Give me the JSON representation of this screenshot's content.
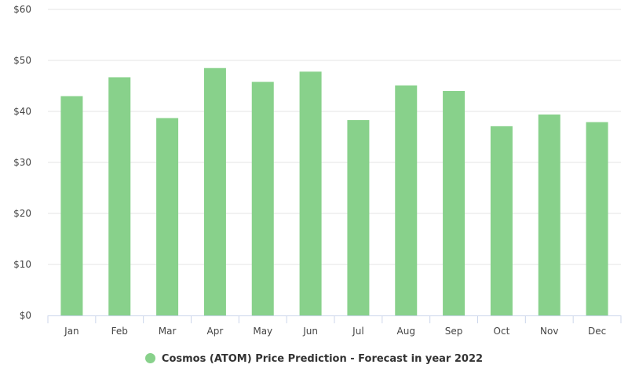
{
  "chart_data": {
    "type": "bar",
    "categories": [
      "Jan",
      "Feb",
      "Mar",
      "Apr",
      "May",
      "Jun",
      "Jul",
      "Aug",
      "Sep",
      "Oct",
      "Nov",
      "Dec"
    ],
    "series": [
      {
        "name": "Cosmos (ATOM) Price Prediction - Forecast in year 2022",
        "values": [
          43.0,
          46.7,
          38.7,
          48.5,
          45.8,
          47.8,
          38.3,
          45.1,
          44.0,
          37.1,
          39.4,
          37.9
        ]
      }
    ],
    "y_ticks": [
      "$0",
      "$10",
      "$20",
      "$30",
      "$40",
      "$50",
      "$60"
    ],
    "ylim": [
      0,
      60
    ],
    "grid": true,
    "legend_position": "bottom-center",
    "bar_color": "#88d18b"
  }
}
